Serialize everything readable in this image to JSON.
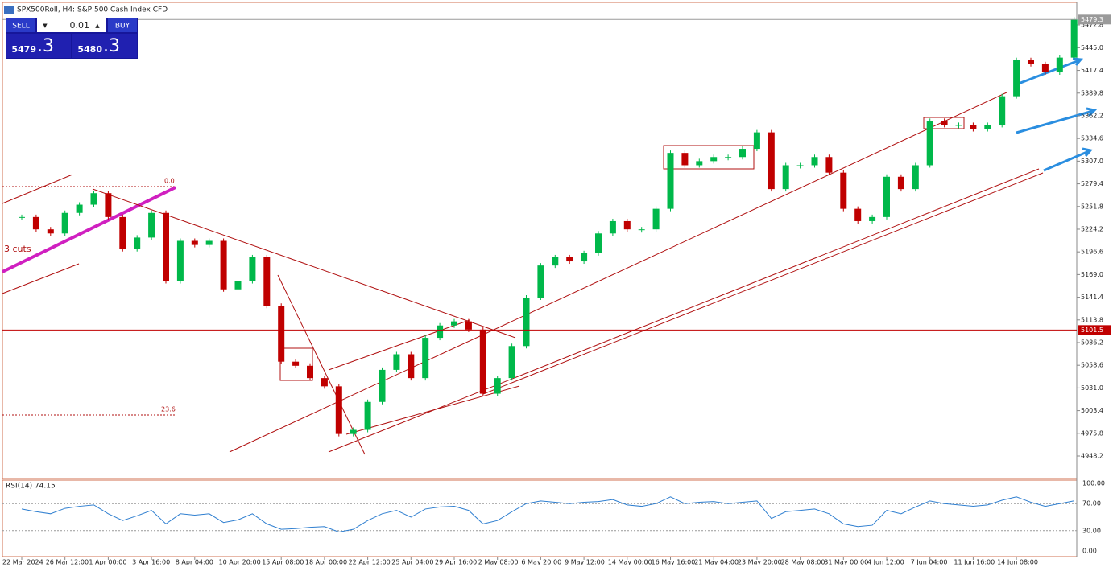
{
  "header": {
    "title": "SPX500Roll, H4:  S&P 500 Cash Index CFD"
  },
  "trade_panel": {
    "sell": "SELL",
    "buy": "BUY",
    "volume": "0.01",
    "bid_main": "5479",
    "bid_frac": ".3",
    "ask_main": "5480",
    "ask_frac": ".3"
  },
  "chart_data": [
    {
      "type": "candlestick",
      "categories": [
        "22 Mar 2024",
        null,
        null,
        "26 Mar 12:00",
        null,
        null,
        "1 Apr 00:00",
        null,
        null,
        "3 Apr 16:00",
        null,
        null,
        "8 Apr 04:00",
        null,
        null,
        "10 Apr 20:00",
        null,
        null,
        "15 Apr 08:00",
        null,
        null,
        "18 Apr 00:00",
        null,
        null,
        "22 Apr 12:00",
        null,
        null,
        "25 Apr 04:00",
        null,
        null,
        "29 Apr 16:00",
        null,
        null,
        "2 May 08:00",
        null,
        null,
        "6 May 20:00",
        null,
        null,
        "9 May 12:00",
        null,
        null,
        "14 May 00:00",
        null,
        null,
        "16 May 16:00",
        null,
        null,
        "21 May 04:00",
        null,
        null,
        "23 May 20:00",
        null,
        null,
        "28 May 08:00",
        null,
        null,
        "31 May 00:00",
        null,
        null,
        "4 Jun 12:00",
        null,
        null,
        "7 Jun 04:00",
        null,
        null,
        "11 Jun 16:00",
        null,
        null,
        "14 Jun 08:00",
        null,
        null,
        null,
        null
      ],
      "values": [
        5239,
        5224,
        5219,
        5244,
        5254,
        5268,
        5239,
        5200,
        5214,
        5244,
        5161,
        5210,
        5205,
        5210,
        5151,
        5161,
        5190,
        5131,
        5063,
        5058,
        5043,
        5033,
        4975,
        4980,
        5014,
        5053,
        5072,
        5043,
        5092,
        5107,
        5112,
        5102,
        5024,
        5043,
        5082,
        5141,
        5180,
        5190,
        5185,
        5195,
        5219,
        5234,
        5224,
        5224,
        5249,
        5317,
        5302,
        5307,
        5312,
        5312,
        5322,
        5342,
        5273,
        5302,
        5302,
        5312,
        5293,
        5249,
        5234,
        5239,
        5288,
        5273,
        5302,
        5356,
        5351,
        5351,
        5346,
        5351,
        5386,
        5430,
        5425,
        5415,
        5433,
        5479.3
      ],
      "up_color": "#00b84a",
      "down_color": "#c00000",
      "ylim": [
        4920.8,
        5498.2
      ],
      "yticks": [
        5472.8,
        {
          "value": 5445,
          "label": "5445.0"
        },
        5417.4,
        5389.8,
        5362.2,
        5334.6,
        {
          "value": 5307,
          "label": "5307.0"
        },
        5279.4,
        5251.8,
        5224.2,
        5196.6,
        {
          "value": 5169,
          "label": "5169.0"
        },
        5141.4,
        5113.8,
        5086.2,
        5058.6,
        {
          "value": 5031,
          "label": "5031.0"
        },
        5003.4,
        4975.8,
        4948.2
      ],
      "price_lines": [
        {
          "value": 5479.3,
          "color": "#9a9a9a"
        },
        {
          "value": 5101.5,
          "color": "#c00000"
        }
      ],
      "annotations": [
        "0.0",
        "23.6",
        "3 cuts"
      ]
    },
    {
      "type": "line",
      "title": "RSI(14) 74.15",
      "color": "#2f7fd0",
      "values": [
        62,
        58,
        55,
        63,
        66,
        68,
        55,
        45,
        52,
        60,
        40,
        55,
        53,
        55,
        42,
        46,
        55,
        40,
        32,
        33,
        35,
        36,
        28,
        32,
        45,
        55,
        60,
        50,
        62,
        65,
        66,
        60,
        40,
        45,
        58,
        70,
        74,
        72,
        70,
        72,
        73,
        76,
        68,
        66,
        70,
        80,
        70,
        72,
        73,
        70,
        72,
        74,
        48,
        58,
        60,
        62,
        55,
        40,
        36,
        38,
        60,
        55,
        65,
        74,
        70,
        68,
        66,
        68,
        75,
        80,
        72,
        66,
        70,
        74.15
      ],
      "ylim": [
        0,
        100
      ],
      "yticks": [
        {
          "value": 100,
          "label": "100.00"
        },
        {
          "value": 70,
          "label": "70.00"
        },
        {
          "value": 30,
          "label": "30.00"
        },
        {
          "value": 0,
          "label": "0.00"
        }
      ]
    }
  ]
}
